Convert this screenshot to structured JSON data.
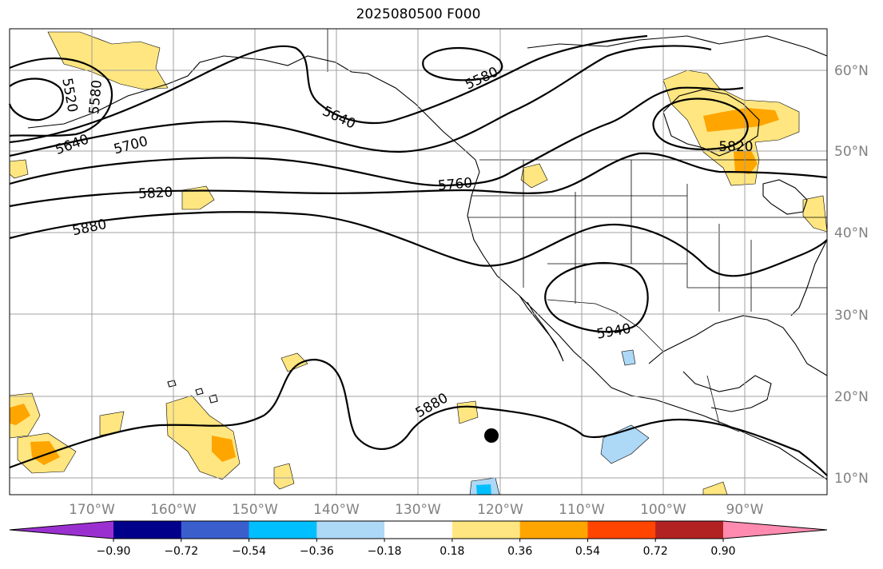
{
  "title": "2025080500 F000",
  "colors": {
    "grid": "#a0a0a0",
    "tick_text": "#808080",
    "contour": "#000000",
    "marker": "#000000"
  },
  "lon_ticks": [
    "170°W",
    "160°W",
    "150°W",
    "140°W",
    "130°W",
    "120°W",
    "110°W",
    "100°W",
    "90°W"
  ],
  "lat_ticks": [
    "10°N",
    "20°N",
    "30°N",
    "40°N",
    "50°N",
    "60°N"
  ],
  "contour_labels": [
    "5520",
    "5580",
    "5640",
    "5700",
    "5820",
    "5880",
    "5640",
    "5580",
    "5760",
    "5820",
    "5940",
    "5880"
  ],
  "colorbar": {
    "ticks": [
      "−0.90",
      "−0.72",
      "−0.54",
      "−0.36",
      "−0.18",
      "0.18",
      "0.36",
      "0.54",
      "0.72",
      "0.90"
    ],
    "colors": [
      "#9b30d0",
      "#00008b",
      "#3a5fcd",
      "#00bfff",
      "#add8f6",
      "#ffffff",
      "#ffe680",
      "#ffa500",
      "#ff4500",
      "#b22222",
      "#ff8cb0"
    ]
  },
  "shading": {
    "positive_light": "#ffe680",
    "positive_mid": "#ffa500",
    "negative_light": "#add8f6",
    "negative_mid": "#00bfff"
  }
}
